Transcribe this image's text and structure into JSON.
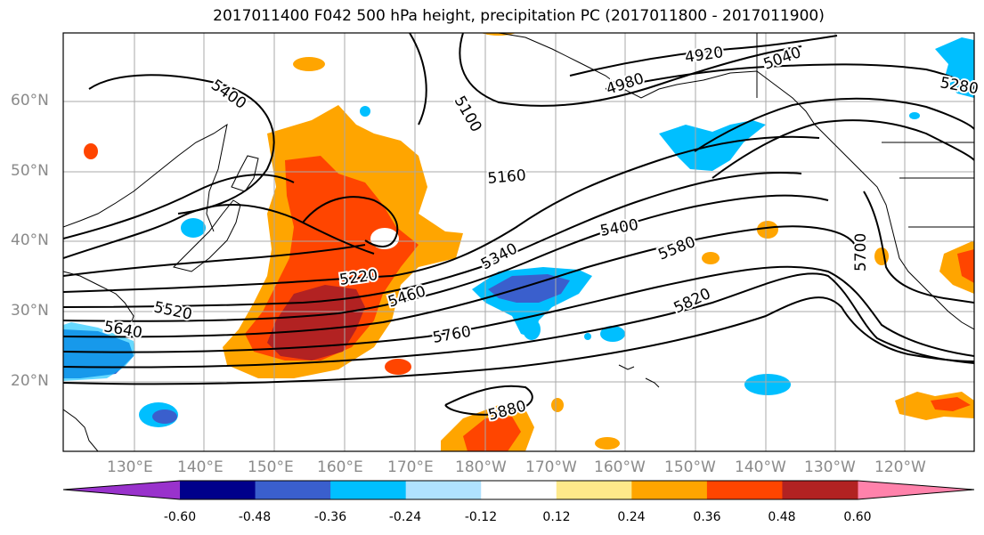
{
  "title": "2017011400 F042 500 hPa height, precipitation PC (2017011800 - 2017011900)",
  "lat_labels": [
    "60°N",
    "50°N",
    "40°N",
    "30°N",
    "20°N"
  ],
  "lon_labels": [
    "130°E",
    "140°E",
    "150°E",
    "160°E",
    "170°E",
    "180°W",
    "170°W",
    "160°W",
    "150°W",
    "140°W",
    "130°W",
    "120°W"
  ],
  "colorbar": {
    "colors": [
      "#9932cc",
      "#00008b",
      "#3a5fcd",
      "#00bfff",
      "#b0e2ff",
      "#ffffff",
      "#fee98a",
      "#ffa500",
      "#ff4500",
      "#b22222",
      "#ff82ab"
    ],
    "labels": [
      "-0.60",
      "-0.48",
      "-0.36",
      "-0.24",
      "-0.12",
      "0.12",
      "0.24",
      "0.36",
      "0.48",
      "0.60"
    ]
  },
  "contour_labels": [
    "5400",
    "5100",
    "4920",
    "4980",
    "5040",
    "5280",
    "5160",
    "5400",
    "5340",
    "5220",
    "5460",
    "5580",
    "5700",
    "5520",
    "5640",
    "5760",
    "5820",
    "5880"
  ]
}
